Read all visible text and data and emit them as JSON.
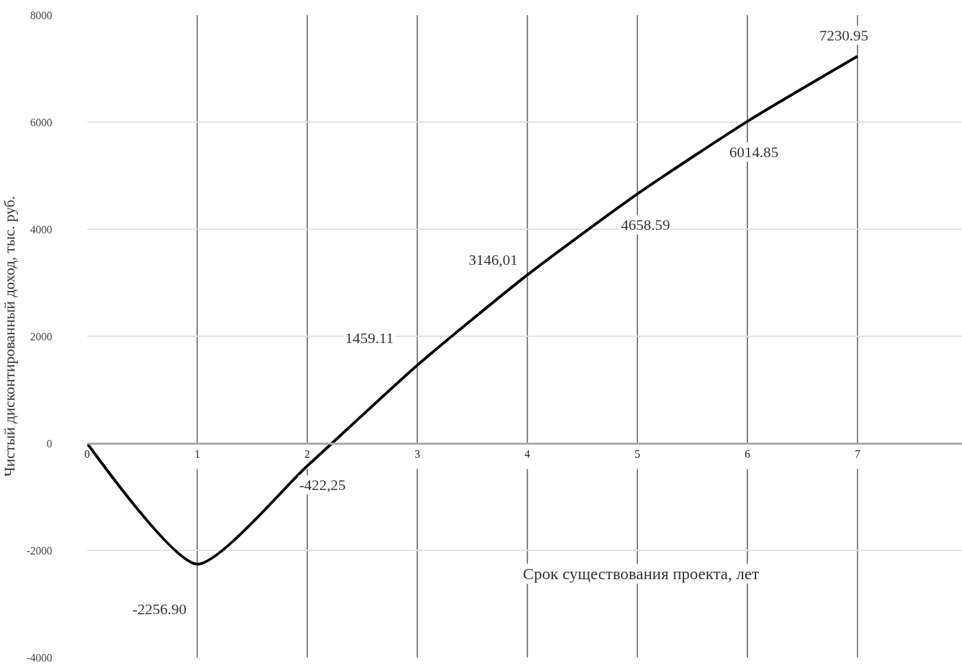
{
  "chart_data": {
    "type": "line",
    "xlabel": "Срок существования проекта, лет",
    "ylabel": "Чистый дисконтированный доход, тыс. руб.",
    "x": [
      0,
      1,
      2,
      3,
      4,
      5,
      6,
      7
    ],
    "series": [
      {
        "color": "#000000",
        "values": [
          0,
          -2256.9,
          -422.25,
          1459.11,
          3146.01,
          4658.59,
          6014.85,
          7230.95
        ],
        "value_labels": [
          null,
          "-2256.90",
          "-422,25",
          "1459.11",
          "3146,01",
          "4658.59",
          "6014.85",
          "7230.95"
        ]
      }
    ],
    "xlim": [
      0,
      7.95
    ],
    "xticks": [
      0,
      1,
      2,
      3,
      4,
      5,
      6,
      7
    ],
    "ylim": [
      -4000,
      8000
    ],
    "yticks": [
      -4000,
      -2000,
      0,
      2000,
      4000,
      6000,
      8000
    ],
    "grid": true,
    "marker": "none",
    "line_style": "solid"
  }
}
